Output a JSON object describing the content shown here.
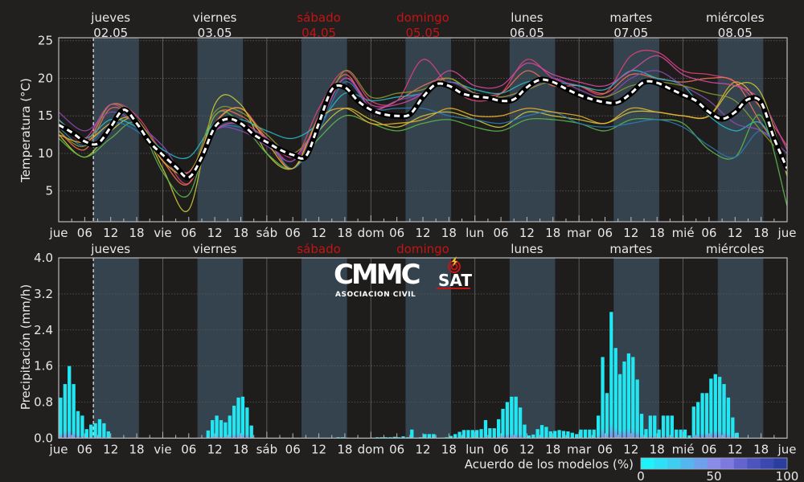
{
  "chart_data": [
    {
      "type": "line",
      "title": "",
      "ylabel": "Temperatura (°C)",
      "ylim": [
        1,
        25
      ],
      "yticks": [
        "25",
        "20",
        "15",
        "10",
        "5"
      ],
      "ytick_values": [
        25,
        20,
        15,
        10,
        5
      ],
      "x_hours_range": [
        0,
        168
      ],
      "day_headers": [
        {
          "name": "jueves",
          "date": "02.05",
          "color": "#e8e8e8"
        },
        {
          "name": "viernes",
          "date": "03.05",
          "color": "#e8e8e8"
        },
        {
          "name": "sábado",
          "date": "04.05",
          "color": "#c41414"
        },
        {
          "name": "domingo",
          "date": "05.05",
          "color": "#c41414"
        },
        {
          "name": "lunes",
          "date": "06.05",
          "color": "#e8e8e8"
        },
        {
          "name": "martes",
          "date": "07.05",
          "color": "#e8e8e8"
        },
        {
          "name": "miércoles",
          "date": "08.05",
          "color": "#e8e8e8"
        }
      ],
      "xtick_labels": [
        "jue",
        "06",
        "12",
        "18",
        "vie",
        "06",
        "12",
        "18",
        "sáb",
        "06",
        "12",
        "18",
        "dom",
        "06",
        "12",
        "18",
        "lun",
        "06",
        "12",
        "18",
        "mar",
        "06",
        "12",
        "18",
        "mié",
        "06",
        "12",
        "18",
        "jue"
      ],
      "now_hour": 8,
      "daylight_hours": [
        8,
        18.5
      ],
      "mean": {
        "name": "media",
        "step_hours": 3,
        "values": [
          13.8,
          12.8,
          11.6,
          11.3,
          13.5,
          15.8,
          14.0,
          11.5,
          9.8,
          8.2,
          6.8,
          9.5,
          13.5,
          14.6,
          14.0,
          12.5,
          11.5,
          10.5,
          9.8,
          9.6,
          14.0,
          18.5,
          18.8,
          17.0,
          15.8,
          15.2,
          15.0,
          15.2,
          17.5,
          19.2,
          19.0,
          18.0,
          17.6,
          17.4,
          17.0,
          17.2,
          18.8,
          19.8,
          19.5,
          18.6,
          17.8,
          17.2,
          16.8,
          16.8,
          18.0,
          19.5,
          19.4,
          18.6,
          17.8,
          17.0,
          15.5,
          14.6,
          15.5,
          17.2,
          16.8,
          12.0,
          8.0
        ]
      },
      "members_step_hours": 6,
      "series": [
        {
          "name": "m1",
          "color": "#e0407a",
          "values": [
            14.5,
            11.5,
            16.5,
            15,
            10,
            6,
            14,
            16,
            12,
            9,
            16,
            21,
            17,
            17,
            22.5,
            19,
            17,
            18,
            22.5,
            20,
            19,
            18,
            23,
            23.5,
            21,
            20.5,
            19.5,
            16,
            11
          ]
        },
        {
          "name": "m2",
          "color": "#f07050",
          "values": [
            13,
            10.5,
            16,
            14,
            9,
            6,
            15,
            15,
            12,
            8,
            15,
            20.5,
            16,
            17,
            19,
            20,
            18,
            18,
            21,
            19,
            19,
            18,
            20.5,
            20,
            19.5,
            20,
            19.5,
            14,
            9
          ]
        },
        {
          "name": "m3",
          "color": "#c8c83a",
          "values": [
            12.5,
            9.5,
            13,
            14.5,
            8,
            2.5,
            16.5,
            16.5,
            10,
            8,
            13,
            16,
            14.5,
            13.5,
            15,
            15.5,
            14.5,
            13.5,
            15.5,
            15,
            14.5,
            14,
            15.5,
            15.5,
            15,
            15,
            19,
            18,
            7
          ]
        },
        {
          "name": "m4",
          "color": "#5ab84a",
          "values": [
            12,
            9.5,
            12,
            14,
            7.5,
            4.5,
            15,
            14,
            10,
            8,
            12,
            15,
            14,
            13,
            14,
            14.5,
            13.5,
            13,
            14.5,
            14.5,
            14,
            13,
            14.5,
            14.5,
            14,
            10.5,
            9.5,
            15,
            3
          ]
        },
        {
          "name": "m5",
          "color": "#28b8c8",
          "values": [
            14.5,
            12,
            14.5,
            13.5,
            10.5,
            9.5,
            14,
            14.5,
            13,
            12,
            14,
            18,
            17,
            17.5,
            18,
            19.5,
            18.5,
            18,
            19.5,
            19.5,
            19,
            18.5,
            21,
            20,
            19,
            15,
            13,
            14,
            8
          ]
        },
        {
          "name": "m6",
          "color": "#2a7ab8",
          "values": [
            13.5,
            11,
            14,
            13,
            9.5,
            7,
            13,
            13.5,
            12,
            8,
            13,
            19.5,
            16,
            16,
            16,
            15,
            14.5,
            14,
            15,
            15.5,
            14,
            13.5,
            14,
            14.5,
            13.5,
            11,
            9.5,
            13,
            9
          ]
        },
        {
          "name": "m7",
          "color": "#8a4ab8",
          "values": [
            15.5,
            13,
            15.5,
            14,
            11,
            7,
            13,
            13,
            11,
            9,
            14,
            20,
            16,
            17,
            18,
            19.5,
            18,
            17.5,
            18.5,
            20,
            18.5,
            17.5,
            20,
            21,
            19,
            17,
            14,
            13,
            10
          ]
        },
        {
          "name": "m8",
          "color": "#8a9a30",
          "values": [
            13,
            11,
            16.5,
            14.5,
            10,
            7,
            15.5,
            15.5,
            12.5,
            10,
            14,
            21,
            17.5,
            18,
            18.5,
            20,
            18,
            17.5,
            18.5,
            19.5,
            18,
            17.5,
            19,
            19.5,
            19,
            18,
            17,
            13,
            9
          ]
        },
        {
          "name": "m9",
          "color": "#e8b030",
          "values": [
            12.5,
            11.5,
            14,
            14.5,
            9,
            7.5,
            14,
            16,
            11.5,
            8,
            14.5,
            16,
            14,
            14,
            14.5,
            16,
            15,
            15,
            16,
            15.5,
            15,
            14,
            16,
            15.5,
            15,
            15,
            19.5,
            16,
            8
          ]
        },
        {
          "name": "m10",
          "color": "#d04aa0",
          "values": [
            14,
            12,
            16.5,
            14,
            10,
            7.5,
            13,
            14,
            12,
            9.5,
            14,
            20,
            16.5,
            16.5,
            18,
            21,
            19,
            19,
            22,
            20.5,
            19.5,
            19,
            21,
            23,
            20.5,
            19.5,
            19,
            17,
            10.5
          ]
        }
      ]
    },
    {
      "type": "bar",
      "ylabel": "Precipitación (mm/h)",
      "ylim": [
        0,
        4.0
      ],
      "yticks": [
        "4.0",
        "3.2",
        "2.4",
        "1.6",
        "0.8",
        "0.0"
      ],
      "ytick_values": [
        4.0,
        3.2,
        2.4,
        1.6,
        0.8,
        0.0
      ],
      "day_headers": [
        "jueves",
        "viernes",
        "sábado",
        "domingo",
        "lunes",
        "martes",
        "miércoles"
      ],
      "day_header_colors": [
        "#e8e8e8",
        "#e8e8e8",
        "#c41414",
        "#c41414",
        "#e8e8e8",
        "#e8e8e8",
        "#e8e8e8"
      ],
      "xtick_labels": [
        "jue",
        "06",
        "12",
        "18",
        "vie",
        "06",
        "12",
        "18",
        "sáb",
        "06",
        "12",
        "18",
        "dom",
        "06",
        "12",
        "18",
        "lun",
        "06",
        "12",
        "18",
        "mar",
        "06",
        "12",
        "18",
        "mié",
        "06",
        "12",
        "18",
        "jue"
      ],
      "bar_color": "#22e6f2",
      "step_hours": 1,
      "values": [
        0.9,
        1.2,
        1.6,
        1.2,
        0.6,
        0.5,
        0.2,
        0.3,
        0.33,
        0.42,
        0.33,
        0.15,
        0,
        0,
        0,
        0,
        0,
        0,
        0,
        0,
        0,
        0,
        0,
        0,
        0,
        0,
        0,
        0,
        0,
        0,
        0,
        0,
        0,
        0,
        0.17,
        0.4,
        0.5,
        0.4,
        0.35,
        0.5,
        0.72,
        0.9,
        0.92,
        0.68,
        0.28,
        0,
        0,
        0,
        0,
        0,
        0,
        0,
        0,
        0,
        0,
        0,
        0,
        0,
        0,
        0,
        0,
        0,
        0,
        0,
        0.02,
        0.02,
        0.01,
        0,
        0,
        0,
        0,
        0,
        0.01,
        0.02,
        0.02,
        0.02,
        0.02,
        0.03,
        0.02,
        0.04,
        0.02,
        0.19,
        0.01,
        0.02,
        0.09,
        0.09,
        0.09,
        0,
        0.01,
        0.02,
        0.05,
        0.09,
        0.14,
        0.18,
        0.18,
        0.18,
        0.18,
        0.2,
        0.4,
        0.22,
        0.22,
        0.42,
        0.65,
        0.8,
        0.92,
        0.92,
        0.68,
        0.3,
        0.06,
        0.08,
        0.2,
        0.29,
        0.25,
        0.15,
        0.16,
        0.18,
        0.16,
        0.15,
        0.12,
        0.09,
        0.19,
        0.19,
        0.19,
        0.19,
        0.5,
        1.8,
        1.0,
        2.8,
        2.0,
        1.42,
        1.7,
        1.88,
        1.8,
        1.3,
        0.54,
        0.2,
        0.5,
        0.5,
        0.19,
        0.5,
        0.5,
        0.5,
        0.19,
        0.19,
        0.19,
        0.06,
        0.7,
        0.8,
        1.0,
        1.0,
        1.32,
        1.42,
        1.36,
        1.2,
        0.9,
        0.46,
        0.12,
        0,
        0,
        0,
        0,
        0,
        0,
        0,
        0,
        0,
        0,
        0
      ],
      "colorbar": {
        "label": "Acuerdo de los modelos (%)",
        "ticks": [
          "0",
          "50",
          "100"
        ],
        "range": [
          0,
          100
        ],
        "colors": [
          "#1ff2f8",
          "#2ee0f5",
          "#40cdf2",
          "#55b6ef",
          "#6fa0ec",
          "#8a8ce8",
          "#7d79de",
          "#6464d0",
          "#4c54c0",
          "#3a48b0",
          "#2a3ea0"
        ]
      }
    }
  ],
  "logo": {
    "main": "CMMC",
    "sub": "ASOCIACION CIVIL",
    "sat": "SAT"
  }
}
